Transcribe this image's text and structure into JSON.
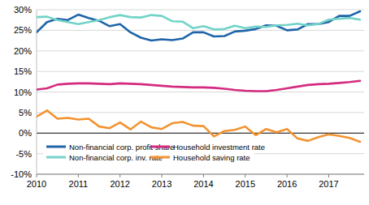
{
  "chart_data": {
    "type": "line",
    "categories": [
      "2010",
      null,
      null,
      null,
      "2011",
      null,
      null,
      null,
      "2012",
      null,
      null,
      null,
      "2013",
      null,
      null,
      null,
      "2014",
      null,
      null,
      null,
      "2015",
      null,
      null,
      null,
      "2016",
      null,
      null,
      null,
      "2017",
      null,
      null,
      null
    ],
    "series": [
      {
        "name": "Non-financial corp. profit share",
        "color": "#1f64a8",
        "values": [
          24.5,
          27.0,
          27.8,
          27.5,
          28.8,
          28.0,
          27.3,
          26.0,
          26.5,
          24.5,
          23.2,
          22.5,
          22.8,
          22.6,
          23.0,
          24.5,
          24.5,
          23.5,
          23.6,
          24.7,
          24.9,
          25.3,
          26.2,
          26.1,
          25.0,
          25.2,
          26.5,
          26.5,
          27.0,
          28.5,
          28.5,
          29.6
        ]
      },
      {
        "name": "Non-financial corp. inv. rate",
        "color": "#72d3c9",
        "values": [
          28.2,
          28.3,
          27.5,
          27.0,
          26.5,
          27.0,
          27.5,
          28.2,
          28.7,
          28.2,
          28.1,
          28.7,
          28.5,
          27.2,
          27.1,
          25.5,
          26.0,
          25.2,
          25.3,
          26.1,
          25.5,
          25.9,
          25.8,
          26.2,
          26.3,
          26.6,
          26.2,
          26.5,
          27.6,
          27.8,
          28.0,
          27.6
        ]
      },
      {
        "name": "Household investment rate",
        "color": "#d42a7f",
        "values": [
          10.6,
          10.9,
          11.8,
          12.0,
          12.1,
          12.1,
          12.0,
          11.9,
          12.1,
          12.0,
          11.9,
          11.7,
          11.5,
          11.3,
          11.2,
          11.1,
          11.1,
          11.0,
          10.8,
          10.5,
          10.3,
          10.2,
          10.2,
          10.5,
          10.9,
          11.3,
          11.7,
          11.9,
          12.0,
          12.2,
          12.4,
          12.7
        ]
      },
      {
        "name": "Household saving rate",
        "color": "#f29330",
        "values": [
          4.0,
          5.5,
          3.5,
          3.7,
          3.3,
          3.5,
          1.6,
          1.2,
          2.6,
          0.9,
          2.8,
          1.4,
          1.0,
          2.4,
          2.7,
          1.8,
          1.7,
          -0.8,
          0.5,
          0.8,
          1.6,
          -0.5,
          1.0,
          0.2,
          1.0,
          -1.3,
          -1.9,
          -1.0,
          -0.3,
          -0.7,
          -1.2,
          -2.1
        ]
      }
    ],
    "ylim": [
      -10,
      30
    ],
    "yticks": [
      {
        "value": -10,
        "label": "-10%"
      },
      {
        "value": -5,
        "label": "-5%"
      },
      {
        "value": 0,
        "label": "0%"
      },
      {
        "value": 5,
        "label": "5%"
      },
      {
        "value": 10,
        "label": "10%"
      },
      {
        "value": 15,
        "label": "15%"
      },
      {
        "value": 20,
        "label": "20%"
      },
      {
        "value": 25,
        "label": "25%"
      },
      {
        "value": 30,
        "label": "30%"
      }
    ],
    "grid": true,
    "legend": "lower left"
  }
}
